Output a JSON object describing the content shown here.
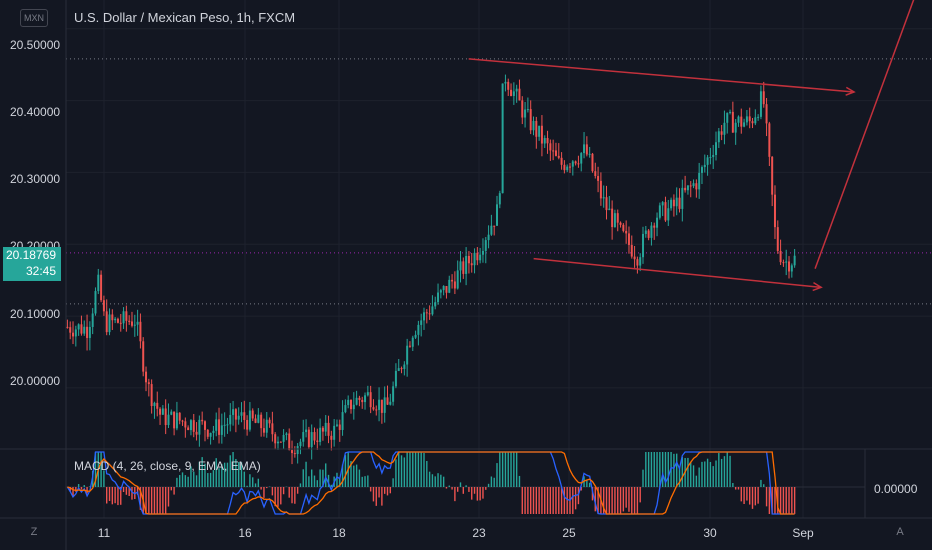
{
  "header": {
    "symbol_badge": "MXN",
    "title": "U.S. Dollar / Mexican Peso, 1h, FXCM"
  },
  "price_axis": {
    "labels": [
      "20.50000",
      "20.40000",
      "20.30000",
      "20.20000",
      "20.10000",
      "20.00000"
    ],
    "current_price": "20.18769",
    "countdown": "32:45"
  },
  "time_axis": {
    "labels": [
      "11",
      "16",
      "18",
      "23",
      "25",
      "30",
      "Sep"
    ]
  },
  "macd": {
    "label": "MACD (4, 26, close, 9, EMA, EMA)",
    "zero_label": "0.00000"
  },
  "corner_buttons": {
    "left": "Z",
    "right": "A"
  },
  "colors": {
    "background": "#131722",
    "up_candle": "#26a69a",
    "down_candle": "#ef5350",
    "drawing": "#c2313c",
    "macd_line": "#2962ff",
    "signal_line": "#ff6d00"
  },
  "chart_data": {
    "type": "candlestick",
    "title": "U.S. Dollar / Mexican Peso, 1h, FXCM",
    "ylim": [
      19.915,
      20.54
    ],
    "x_tick_labels": [
      "11",
      "16",
      "18",
      "23",
      "25",
      "30",
      "Sep"
    ],
    "price_path": [
      [
        0.0,
        20.085
      ],
      [
        0.025,
        20.083
      ],
      [
        0.037,
        20.145
      ],
      [
        0.045,
        20.09
      ],
      [
        0.08,
        20.095
      ],
      [
        0.095,
        20.0
      ],
      [
        0.11,
        19.96
      ],
      [
        0.15,
        19.95
      ],
      [
        0.17,
        19.942
      ],
      [
        0.2,
        19.96
      ],
      [
        0.23,
        19.945
      ],
      [
        0.26,
        19.92
      ],
      [
        0.29,
        19.935
      ],
      [
        0.31,
        19.94
      ],
      [
        0.33,
        19.98
      ],
      [
        0.35,
        19.99
      ],
      [
        0.37,
        19.97
      ],
      [
        0.4,
        20.08
      ],
      [
        0.44,
        20.14
      ],
      [
        0.475,
        20.19
      ],
      [
        0.5,
        20.25
      ],
      [
        0.505,
        20.44
      ],
      [
        0.53,
        20.38
      ],
      [
        0.57,
        20.31
      ],
      [
        0.6,
        20.33
      ],
      [
        0.62,
        20.26
      ],
      [
        0.64,
        20.215
      ],
      [
        0.66,
        20.185
      ],
      [
        0.68,
        20.24
      ],
      [
        0.7,
        20.25
      ],
      [
        0.73,
        20.29
      ],
      [
        0.76,
        20.37
      ],
      [
        0.79,
        20.37
      ],
      [
        0.805,
        20.405
      ],
      [
        0.81,
        20.34
      ],
      [
        0.82,
        20.2
      ],
      [
        0.83,
        20.175
      ],
      [
        0.843,
        20.18
      ]
    ],
    "horizontal_levels": [
      20.458,
      20.188,
      20.117
    ],
    "trendlines": [
      {
        "from": [
          0.465,
          20.458
        ],
        "to": [
          0.91,
          20.412
        ]
      },
      {
        "from": [
          0.54,
          20.18
        ],
        "to": [
          0.872,
          20.14
        ]
      },
      {
        "from": [
          0.865,
          20.166
        ],
        "to": [
          1.0,
          20.61
        ]
      }
    ],
    "macd_zero": 0.0
  }
}
